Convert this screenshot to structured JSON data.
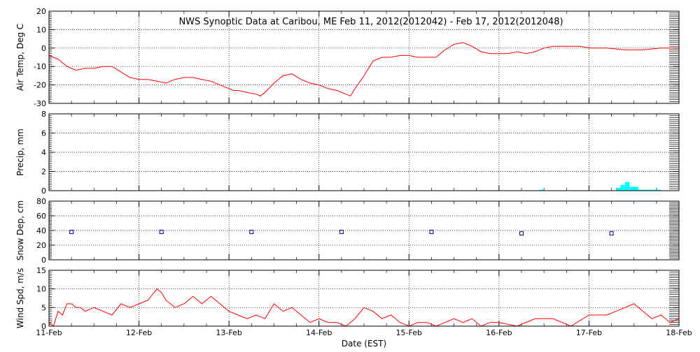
{
  "chart_data": {
    "type": "line",
    "title": "NWS Synoptic Data at Caribou, ME   Feb 11, 2012(2012042) - Feb 17, 2012(2012048)",
    "xlabel": "Date (EST)",
    "xlim": [
      0,
      7
    ],
    "x_tick_labels": [
      "11-Feb",
      "12-Feb",
      "13-Feb",
      "14-Feb",
      "15-Feb",
      "16-Feb",
      "17-Feb",
      "18-Feb"
    ],
    "grid": true,
    "colors": {
      "line": "#ff0000",
      "precip": "#00ffff",
      "snow": "#00008b",
      "axis": "#000000"
    },
    "panels": [
      {
        "id": "air-temp",
        "ylabel": "Air Temp, Deg C",
        "ylim": [
          -30,
          20
        ],
        "yticks": [
          "-30",
          "-20",
          "-10",
          "0",
          "10",
          "20"
        ],
        "series": [
          {
            "kind": "line",
            "x": [
              0,
              0.1,
              0.2,
              0.3,
              0.4,
              0.5,
              0.6,
              0.7,
              0.8,
              0.9,
              1.0,
              1.1,
              1.2,
              1.3,
              1.4,
              1.5,
              1.6,
              1.7,
              1.8,
              1.9,
              2.0,
              2.05,
              2.1,
              2.2,
              2.3,
              2.35,
              2.4,
              2.5,
              2.6,
              2.7,
              2.8,
              2.9,
              3.0,
              3.1,
              3.2,
              3.3,
              3.35,
              3.4,
              3.5,
              3.6,
              3.7,
              3.8,
              3.9,
              4.0,
              4.1,
              4.15,
              4.2,
              4.3,
              4.4,
              4.5,
              4.6,
              4.7,
              4.8,
              4.9,
              5.0,
              5.1,
              5.2,
              5.3,
              5.4,
              5.5,
              5.6,
              5.7,
              5.8,
              5.9,
              6.0,
              6.2,
              6.4,
              6.6,
              6.8,
              7.0
            ],
            "y": [
              -4,
              -6,
              -10,
              -12,
              -11,
              -11,
              -10,
              -10,
              -13,
              -16,
              -17,
              -17,
              -18,
              -19,
              -17,
              -16,
              -16,
              -17,
              -18,
              -20,
              -22,
              -23,
              -23,
              -24,
              -25,
              -26,
              -24,
              -19,
              -15,
              -14,
              -17,
              -19,
              -20,
              -22,
              -23,
              -25,
              -26,
              -22,
              -15,
              -7,
              -5,
              -5,
              -4,
              -4,
              -5,
              -5,
              -5,
              -5,
              -1,
              2,
              3,
              1,
              -2,
              -3,
              -3,
              -3,
              -2,
              -3,
              -2,
              0,
              1,
              1,
              1,
              1,
              0,
              0,
              -1,
              -1,
              0,
              0
            ]
          }
        ]
      },
      {
        "id": "precip",
        "ylabel": "Precip, mm",
        "ylim": [
          0,
          8
        ],
        "yticks": [
          "0",
          "2",
          "4",
          "6",
          "8"
        ],
        "series": [
          {
            "kind": "bar",
            "x": [
              5.45,
              6.3,
              6.35,
              6.4,
              6.45,
              6.5,
              6.55,
              6.6,
              6.65,
              6.7,
              6.75
            ],
            "values": [
              0.1,
              0.3,
              0.6,
              0.9,
              0.4,
              0.4,
              0.1,
              0.1,
              0.1,
              0.1,
              0.1
            ],
            "width": 0.05
          }
        ]
      },
      {
        "id": "snow",
        "ylabel": "Snow Dep, cm",
        "ylim": [
          0,
          80
        ],
        "yticks": [
          "0",
          "20",
          "40",
          "60",
          "80"
        ],
        "series": [
          {
            "kind": "marker",
            "x": [
              0.25,
              1.25,
              2.25,
              3.25,
              4.25,
              5.25,
              6.25
            ],
            "values": [
              38,
              38,
              38,
              38,
              38,
              36,
              36
            ]
          }
        ]
      },
      {
        "id": "wind",
        "ylabel": "Wind Spd, m/s",
        "ylim": [
          0,
          15
        ],
        "yticks": [
          "0",
          "5",
          "10",
          "15"
        ],
        "series": [
          {
            "kind": "line",
            "x": [
              0,
              0.05,
              0.1,
              0.15,
              0.2,
              0.25,
              0.3,
              0.35,
              0.4,
              0.5,
              0.6,
              0.7,
              0.8,
              0.9,
              1.0,
              1.1,
              1.2,
              1.25,
              1.3,
              1.4,
              1.5,
              1.6,
              1.7,
              1.8,
              1.9,
              2.0,
              2.1,
              2.2,
              2.3,
              2.4,
              2.5,
              2.6,
              2.7,
              2.8,
              2.9,
              3.0,
              3.1,
              3.2,
              3.3,
              3.4,
              3.5,
              3.6,
              3.7,
              3.8,
              3.9,
              4.0,
              4.1,
              4.2,
              4.3,
              4.4,
              4.5,
              4.6,
              4.7,
              4.8,
              4.9,
              5.0,
              5.2,
              5.4,
              5.6,
              5.8,
              6.0,
              6.2,
              6.3,
              6.4,
              6.5,
              6.6,
              6.7,
              6.8,
              6.9,
              7.0
            ],
            "y": [
              1,
              0,
              4,
              3,
              6,
              6,
              5,
              5,
              4,
              5,
              4,
              3,
              6,
              5,
              6,
              7,
              10,
              9,
              7,
              5,
              6,
              8,
              6,
              8,
              6,
              4,
              3,
              2,
              3,
              2,
              6,
              4,
              5,
              3,
              1,
              2,
              1,
              1,
              0,
              2,
              5,
              4,
              2,
              3,
              1,
              0,
              1,
              1,
              0,
              1,
              2,
              1,
              2,
              0,
              1,
              1,
              0,
              2,
              2,
              0,
              3,
              3,
              4,
              5,
              6,
              4,
              2,
              3,
              1,
              2
            ]
          }
        ]
      }
    ]
  }
}
